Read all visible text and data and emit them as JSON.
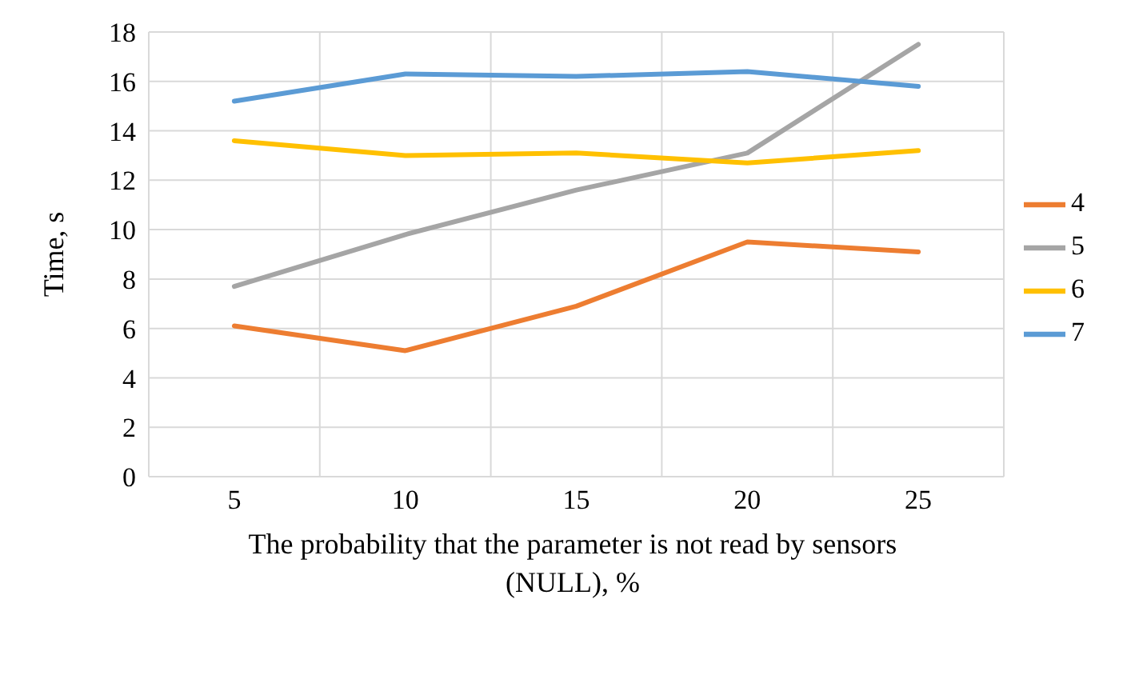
{
  "chart_data": {
    "type": "line",
    "xlabel": "The probability that the parameter is not read by sensors (NULL), %",
    "ylabel": "Time, s",
    "categories": [
      "5",
      "10",
      "15",
      "20",
      "25"
    ],
    "series": [
      {
        "name": "4",
        "color": "#ed7d31",
        "values": [
          6.1,
          5.1,
          6.9,
          9.5,
          9.1
        ]
      },
      {
        "name": "5",
        "color": "#a5a5a5",
        "values": [
          7.7,
          9.8,
          11.6,
          13.1,
          17.5
        ]
      },
      {
        "name": "6",
        "color": "#ffc000",
        "values": [
          13.6,
          13.0,
          13.1,
          12.7,
          13.2
        ]
      },
      {
        "name": "7",
        "color": "#5b9bd5",
        "values": [
          15.2,
          16.3,
          16.2,
          16.4,
          15.8
        ]
      }
    ],
    "ylim": [
      0,
      18
    ],
    "yticks": [
      0,
      2,
      4,
      6,
      8,
      10,
      12,
      14,
      16,
      18
    ],
    "grid": true,
    "legend": "right",
    "marker": "none",
    "line_style": "solid"
  }
}
